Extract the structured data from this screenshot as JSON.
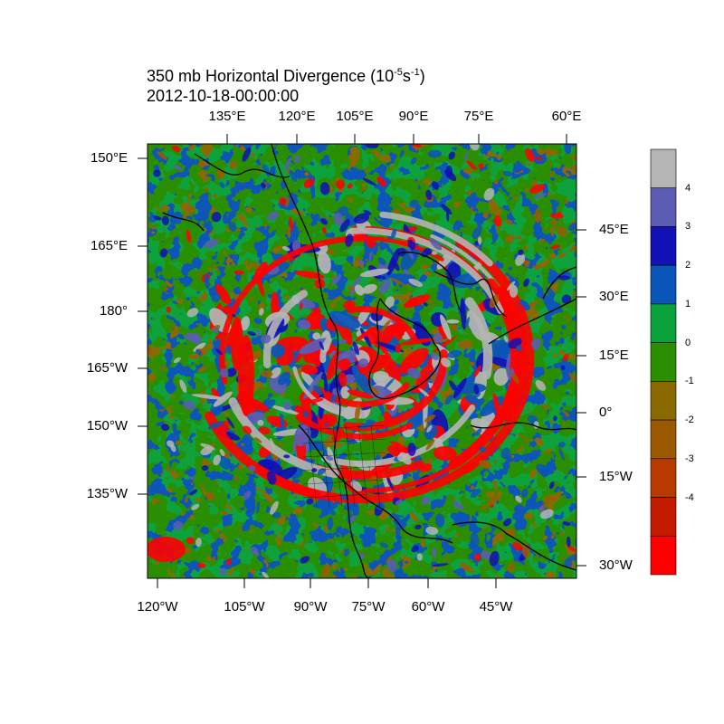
{
  "title": {
    "prefix": "350 mb Horizontal Divergence (10",
    "exp1": "-5",
    "mid": "s",
    "exp2": "-1",
    "suffix": ")"
  },
  "subtitle": "2012-10-18-00:00:00",
  "colors": {
    "field_levels": [
      "#ff0000",
      "#c41a00",
      "#b83a00",
      "#9b5a00",
      "#8a6a00",
      "#2a8f00",
      "#09a23a",
      "#0a55b8",
      "#1111b5",
      "#5c5cb5",
      "#b5b5b5"
    ],
    "coast": "#000000"
  },
  "chart_data": {
    "type": "heatmap",
    "title": "350 mb Horizontal Divergence (10^-5 s^-1)",
    "subtitle": "2012-10-18-00:00:00",
    "projection": "polar stereographic (north)",
    "variable": "horizontal divergence",
    "units": "10^-5 s^-1",
    "axes": {
      "top": [
        "135°E",
        "120°E",
        "105°E",
        "90°E",
        "75°E",
        "60°E"
      ],
      "bottom": [
        "120°W",
        "105°W",
        "90°W",
        "75°W",
        "60°W",
        "45°W"
      ],
      "left": [
        "150°E",
        "165°E",
        "180°",
        "165°W",
        "150°W",
        "135°W"
      ],
      "right": [
        "45°E",
        "30°E",
        "15°E",
        "0°",
        "15°W",
        "30°W"
      ]
    },
    "colorbar": {
      "levels": [
        -4,
        -3,
        -2,
        -1,
        0,
        1,
        2,
        3,
        4
      ],
      "labels": [
        "4",
        "3",
        "2",
        "1",
        "0",
        "-1",
        "-2",
        "-3",
        "-4"
      ]
    }
  }
}
